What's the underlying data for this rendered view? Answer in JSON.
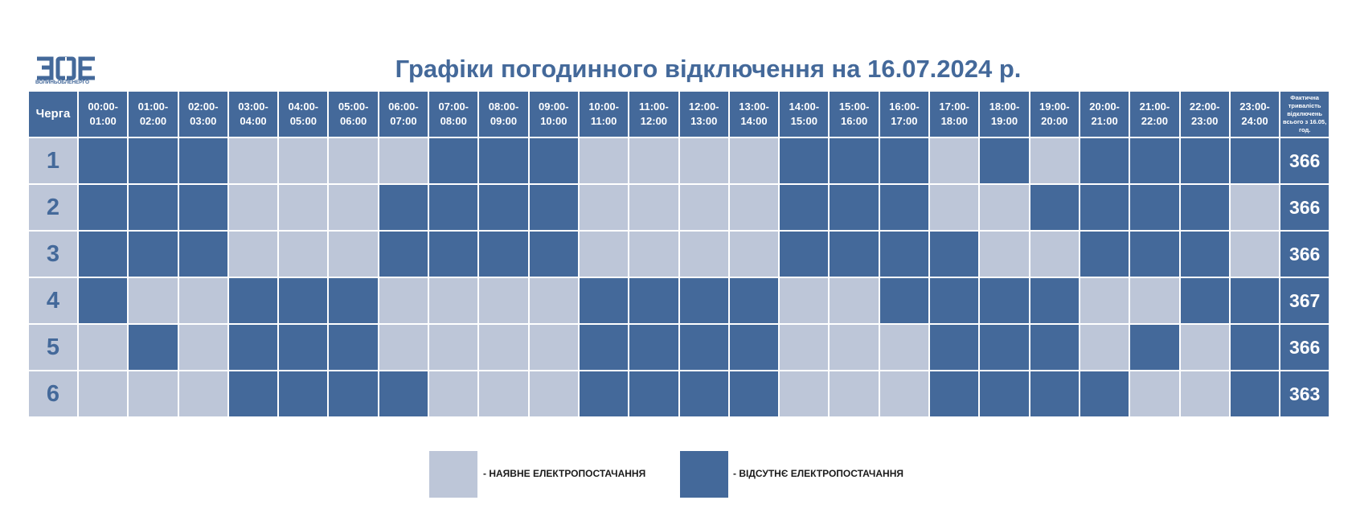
{
  "logo": {
    "icon": "zoe-logo",
    "caption": "ВОЛИНЬОБЛЕНЕРГО"
  },
  "title": "Графіки погодинного відключення на 16.07.2024 р.",
  "table": {
    "queue_header": "Черга",
    "hours": [
      [
        "00:00-",
        "01:00"
      ],
      [
        "01:00-",
        "02:00"
      ],
      [
        "02:00-",
        "03:00"
      ],
      [
        "03:00-",
        "04:00"
      ],
      [
        "04:00-",
        "05:00"
      ],
      [
        "05:00-",
        "06:00"
      ],
      [
        "06:00-",
        "07:00"
      ],
      [
        "07:00-",
        "08:00"
      ],
      [
        "08:00-",
        "09:00"
      ],
      [
        "09:00-",
        "10:00"
      ],
      [
        "10:00-",
        "11:00"
      ],
      [
        "11:00-",
        "12:00"
      ],
      [
        "12:00-",
        "13:00"
      ],
      [
        "13:00-",
        "14:00"
      ],
      [
        "14:00-",
        "15:00"
      ],
      [
        "15:00-",
        "16:00"
      ],
      [
        "16:00-",
        "17:00"
      ],
      [
        "17:00-",
        "18:00"
      ],
      [
        "18:00-",
        "19:00"
      ],
      [
        "19:00-",
        "20:00"
      ],
      [
        "20:00-",
        "21:00"
      ],
      [
        "21:00-",
        "22:00"
      ],
      [
        "22:00-",
        "23:00"
      ],
      [
        "23:00-",
        "24:00"
      ]
    ],
    "total_header": [
      "Фактична",
      "тривалість",
      "відключень",
      "всього з 16.05,",
      "год."
    ],
    "rows": [
      {
        "queue": "1",
        "total": "366",
        "cells": [
          0,
          0,
          0,
          1,
          1,
          1,
          1,
          0,
          0,
          0,
          1,
          1,
          1,
          1,
          0,
          0,
          0,
          1,
          0,
          1,
          0,
          0,
          0,
          0
        ]
      },
      {
        "queue": "2",
        "total": "366",
        "cells": [
          0,
          0,
          0,
          1,
          1,
          1,
          0,
          0,
          0,
          0,
          1,
          1,
          1,
          1,
          0,
          0,
          0,
          1,
          1,
          0,
          0,
          0,
          0,
          1
        ]
      },
      {
        "queue": "3",
        "total": "366",
        "cells": [
          0,
          0,
          0,
          1,
          1,
          1,
          0,
          0,
          0,
          0,
          1,
          1,
          1,
          1,
          0,
          0,
          0,
          0,
          1,
          1,
          0,
          0,
          0,
          1
        ]
      },
      {
        "queue": "4",
        "total": "367",
        "cells": [
          0,
          1,
          1,
          0,
          0,
          0,
          1,
          1,
          1,
          1,
          0,
          0,
          0,
          0,
          1,
          1,
          0,
          0,
          0,
          0,
          1,
          1,
          0,
          0
        ]
      },
      {
        "queue": "5",
        "total": "366",
        "cells": [
          1,
          0,
          1,
          0,
          0,
          0,
          1,
          1,
          1,
          1,
          0,
          0,
          0,
          0,
          1,
          1,
          1,
          0,
          0,
          0,
          1,
          0,
          1,
          0
        ]
      },
      {
        "queue": "6",
        "total": "363",
        "cells": [
          1,
          1,
          1,
          0,
          0,
          0,
          0,
          1,
          1,
          1,
          0,
          0,
          0,
          0,
          1,
          1,
          1,
          0,
          0,
          0,
          0,
          1,
          1,
          0
        ]
      }
    ]
  },
  "legend": {
    "available": {
      "label": "- НАЯВНЕ ЕЛЕКТРОПОСТАЧАННЯ",
      "color": "#bdc6d8"
    },
    "absent": {
      "label": "- ВІДСУТНЄ ЕЛЕКТРОПОСТАЧАННЯ",
      "color": "#44699a"
    }
  },
  "colors": {
    "accent": "#44699a",
    "light": "#bdc6d8"
  }
}
